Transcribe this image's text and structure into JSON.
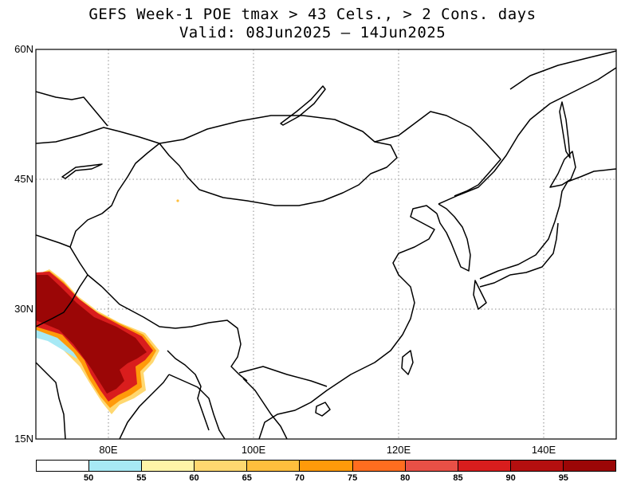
{
  "title": {
    "line1": "GEFS Week-1 POE tmax > 43 Cels., > 2 Cons. days",
    "line2": "Valid: 08Jun2025 – 14Jun2025"
  },
  "map": {
    "lon_range": [
      70,
      150
    ],
    "lat_range": [
      15,
      60
    ],
    "lat_labels": [
      {
        "lat": 60,
        "text": "60N"
      },
      {
        "lat": 45,
        "text": "45N"
      },
      {
        "lat": 30,
        "text": "30N"
      },
      {
        "lat": 15,
        "text": "15N"
      }
    ],
    "lon_labels": [
      {
        "lon": 80,
        "text": "80E"
      },
      {
        "lon": 100,
        "text": "100E"
      },
      {
        "lon": 120,
        "text": "120E"
      },
      {
        "lon": 140,
        "text": "140E"
      }
    ],
    "gridlines": "dotted",
    "outline_color": "#000000"
  },
  "legend": {
    "colors": [
      "#ffffff",
      "#a7e9f5",
      "#fff5a8",
      "#ffd870",
      "#ffbf3d",
      "#ff9a0a",
      "#ff6d1f",
      "#e85046",
      "#d91d1d",
      "#b40f0f",
      "#9b0606"
    ],
    "labels": [
      "50",
      "55",
      "60",
      "65",
      "70",
      "75",
      "80",
      "85",
      "90",
      "95"
    ]
  }
}
